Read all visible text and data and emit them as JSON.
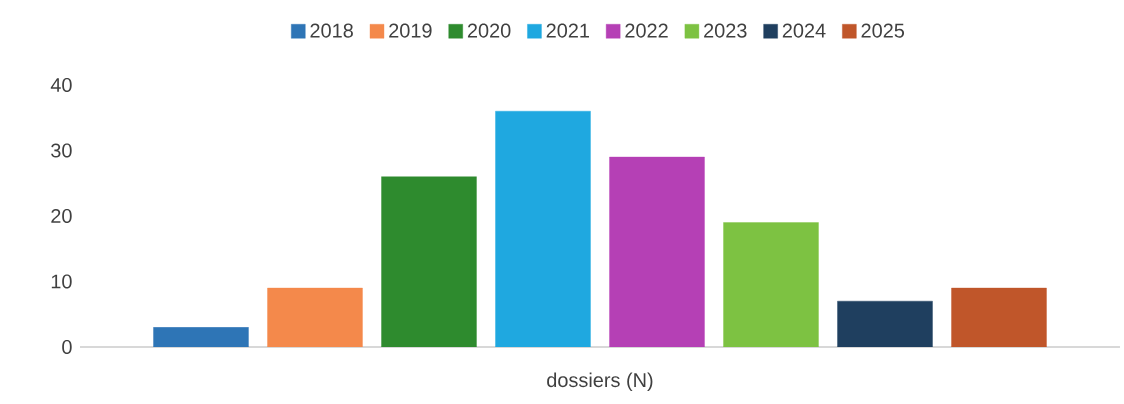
{
  "chart_data": {
    "type": "bar",
    "categories": [
      "dossiers (N)"
    ],
    "series": [
      {
        "name": "2018",
        "color": "#2e75b6",
        "values": [
          3
        ]
      },
      {
        "name": "2019",
        "color": "#f4894b",
        "values": [
          9
        ]
      },
      {
        "name": "2020",
        "color": "#2e8b2e",
        "values": [
          26
        ]
      },
      {
        "name": "2021",
        "color": "#1fa8e0",
        "values": [
          36
        ]
      },
      {
        "name": "2022",
        "color": "#b540b5",
        "values": [
          29
        ]
      },
      {
        "name": "2023",
        "color": "#7dc242",
        "values": [
          19
        ]
      },
      {
        "name": "2024",
        "color": "#1f3f5f",
        "values": [
          7
        ]
      },
      {
        "name": "2025",
        "color": "#c0562a",
        "values": [
          9
        ]
      }
    ],
    "ylim": [
      0,
      40
    ],
    "yticks": [
      0,
      10,
      20,
      30,
      40
    ],
    "legend": "top"
  }
}
